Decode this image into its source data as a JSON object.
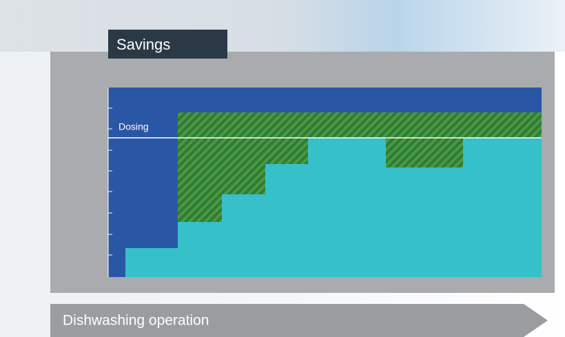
{
  "tab": {
    "title": "Savings"
  },
  "chart": {
    "line_label": "Dosing"
  },
  "footer": {
    "arrow_label": "Dishwashing operation"
  }
}
